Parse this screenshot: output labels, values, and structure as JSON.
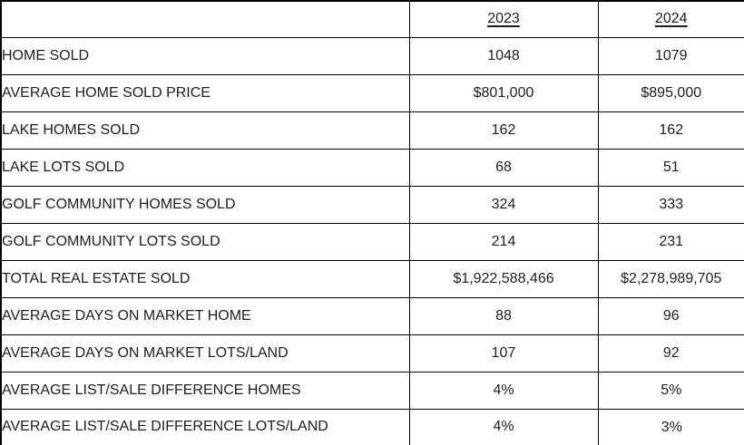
{
  "table": {
    "columns": [
      "",
      "2023",
      "2024"
    ],
    "rows": [
      {
        "label": "HOME SOLD",
        "y2023": "1048",
        "y2024": "1079"
      },
      {
        "label": "AVERAGE HOME SOLD PRICE",
        "y2023": "$801,000",
        "y2024": "$895,000"
      },
      {
        "label": "LAKE HOMES SOLD",
        "y2023": "162",
        "y2024": "162"
      },
      {
        "label": "LAKE LOTS SOLD",
        "y2023": "68",
        "y2024": "51"
      },
      {
        "label": "GOLF COMMUNITY HOMES SOLD",
        "y2023": "324",
        "y2024": "333"
      },
      {
        "label": "GOLF COMMUNITY LOTS SOLD",
        "y2023": "214",
        "y2024": "231"
      },
      {
        "label": "TOTAL REAL ESTATE SOLD",
        "y2023": "$1,922,588,466",
        "y2024": "$2,278,989,705"
      },
      {
        "label": "AVERAGE DAYS ON MARKET HOME",
        "y2023": "88",
        "y2024": "96"
      },
      {
        "label": "AVERAGE DAYS ON MARKET LOTS/LAND",
        "y2023": "107",
        "y2024": "92"
      },
      {
        "label": "AVERAGE LIST/SALE DIFFERENCE HOMES",
        "y2023": "4%",
        "y2024": "5%"
      },
      {
        "label": "AVERAGE LIST/SALE DIFFERENCE LOTS/LAND",
        "y2023": "4%",
        "y2024": "3%"
      }
    ]
  },
  "colors": {
    "border": "#000000",
    "text": "#1f1f1f",
    "background": "#ffffff"
  }
}
